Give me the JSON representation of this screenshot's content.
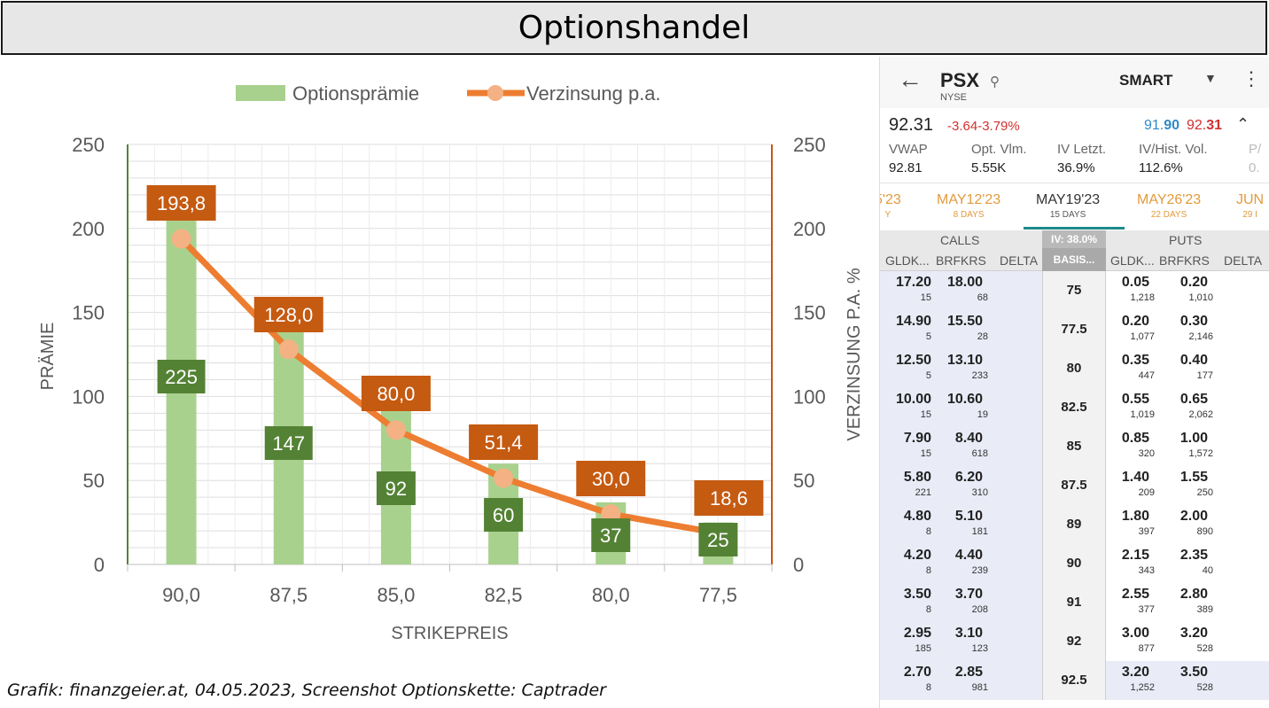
{
  "title": "Optionshandel",
  "caption": "Grafik: finanzgeier.at, 04.05.2023, Screenshot Optionskette: Captrader",
  "chart_data": {
    "type": "bar",
    "categories": [
      "90,0",
      "87,5",
      "85,0",
      "82,5",
      "80,0",
      "77,5"
    ],
    "series": [
      {
        "name": "Optionsprämie",
        "type": "bar",
        "axis": "left",
        "color": "#a9d18e",
        "label_color": "#548235",
        "values": [
          225,
          147,
          92,
          60,
          37,
          25
        ]
      },
      {
        "name": "Verzinsung p.a.",
        "type": "line",
        "axis": "right",
        "color": "#ed7d31",
        "marker_color": "#f4b183",
        "label_color": "#c55a11",
        "values": [
          193.8,
          128.0,
          80.0,
          51.4,
          30.0,
          18.6
        ],
        "labels": [
          "193,8",
          "128,0",
          "80,0",
          "51,4",
          "30,0",
          "18,6"
        ]
      }
    ],
    "xlabel": "STRIKEPREIS",
    "ylabel": "PRÄMIE",
    "y2label": "VERZINSUNG P.A. %",
    "ylim": [
      0,
      250
    ],
    "y2lim": [
      0,
      250
    ],
    "yticks": [
      "0",
      "50",
      "100",
      "150",
      "200",
      "250"
    ],
    "grid": true,
    "legend_position": "top"
  },
  "phone": {
    "back_icon": "arrow-left-icon",
    "symbol": "PSX",
    "exchange": "NYSE",
    "routing": "SMART",
    "price": "92.31",
    "change": "-3.64",
    "change_pct": "-3.79%",
    "bid_prefix": "91.",
    "bid_bold": "90",
    "ask_prefix": "92.",
    "ask_bold": "31",
    "stats": [
      {
        "label": "VWAP",
        "value": "92.81"
      },
      {
        "label": "Opt. Vlm.",
        "value": "5.55K"
      },
      {
        "label": "IV Letzt.",
        "value": "36.9%"
      },
      {
        "label": "IV/Hist. Vol.",
        "value": "112.6%"
      },
      {
        "label": "P/",
        "value": "0."
      }
    ],
    "expirations": [
      {
        "date": "5'23",
        "sub": "Y"
      },
      {
        "date": "MAY12'23",
        "sub": "8 DAYS"
      },
      {
        "date": "MAY19'23",
        "sub": "15 DAYS",
        "active": true
      },
      {
        "date": "MAY26'23",
        "sub": "22 DAYS"
      },
      {
        "date": "JUN",
        "sub": "29 I"
      }
    ],
    "calls_label": "CALLS",
    "puts_label": "PUTS",
    "iv_label": "IV: 38.0%",
    "basis_label": "BASIS...",
    "col_bid": "GLDK...",
    "col_ask": "BRFKRS",
    "col_delta": "DELTA",
    "rows": [
      {
        "strike": "75",
        "cb": "17.20",
        "cbs": "15",
        "ca": "18.00",
        "cas": "68",
        "pb": "0.05",
        "pbs": "1,218",
        "pa": "0.20",
        "pas": "1,010"
      },
      {
        "strike": "77.5",
        "cb": "14.90",
        "cbs": "5",
        "ca": "15.50",
        "cas": "28",
        "pb": "0.20",
        "pbs": "1,077",
        "pa": "0.30",
        "pas": "2,146"
      },
      {
        "strike": "80",
        "cb": "12.50",
        "cbs": "5",
        "ca": "13.10",
        "cas": "233",
        "pb": "0.35",
        "pbs": "447",
        "pa": "0.40",
        "pas": "177"
      },
      {
        "strike": "82.5",
        "cb": "10.00",
        "cbs": "15",
        "ca": "10.60",
        "cas": "19",
        "pb": "0.55",
        "pbs": "1,019",
        "pa": "0.65",
        "pas": "2,062"
      },
      {
        "strike": "85",
        "cb": "7.90",
        "cbs": "15",
        "ca": "8.40",
        "cas": "618",
        "pb": "0.85",
        "pbs": "320",
        "pa": "1.00",
        "pas": "1,572"
      },
      {
        "strike": "87.5",
        "cb": "5.80",
        "cbs": "221",
        "ca": "6.20",
        "cas": "310",
        "pb": "1.40",
        "pbs": "209",
        "pa": "1.55",
        "pas": "250"
      },
      {
        "strike": "89",
        "cb": "4.80",
        "cbs": "8",
        "ca": "5.10",
        "cas": "181",
        "pb": "1.80",
        "pbs": "397",
        "pa": "2.00",
        "pas": "890"
      },
      {
        "strike": "90",
        "cb": "4.20",
        "cbs": "8",
        "ca": "4.40",
        "cas": "239",
        "pb": "2.15",
        "pbs": "343",
        "pa": "2.35",
        "pas": "40"
      },
      {
        "strike": "91",
        "cb": "3.50",
        "cbs": "8",
        "ca": "3.70",
        "cas": "208",
        "pb": "2.55",
        "pbs": "377",
        "pa": "2.80",
        "pas": "389"
      },
      {
        "strike": "92",
        "cb": "2.95",
        "cbs": "185",
        "ca": "3.10",
        "cas": "123",
        "pb": "3.00",
        "pbs": "877",
        "pa": "3.20",
        "pas": "528"
      },
      {
        "strike": "92.5",
        "cb": "2.70",
        "cbs": "8",
        "ca": "2.85",
        "cas": "981",
        "pb": "3.20",
        "pbs": "1,252",
        "pa": "3.50",
        "pas": "528"
      }
    ]
  }
}
